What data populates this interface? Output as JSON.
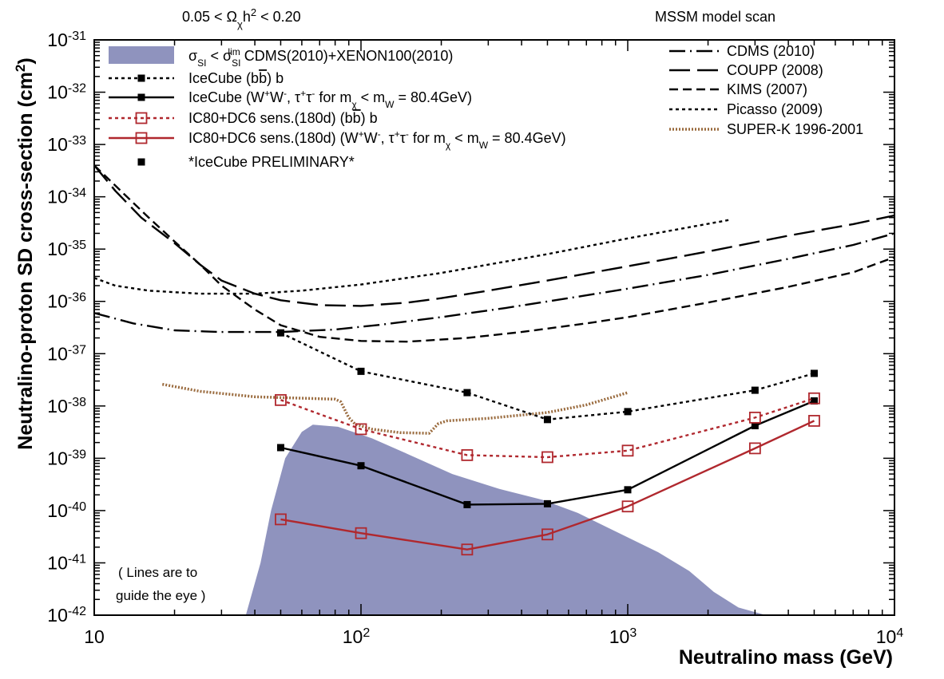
{
  "chart_data": {
    "type": "line",
    "title_left": "0.05 < Ω_χ h² < 0.20",
    "title_left_parts": [
      "0.05 < Ω",
      "χ",
      "h",
      "2",
      " < 0.20"
    ],
    "title_right": "MSSM model scan",
    "xlabel": "Neutralino mass (GeV)",
    "ylabel": "Neutralino-proton SD cross-section (cm²)",
    "ylabel_parts": [
      "Neutralino-proton SD cross-section (cm",
      "2",
      ")"
    ],
    "x_scale": "log",
    "y_scale": "log",
    "xlim": [
      10,
      10000
    ],
    "ylim": [
      1e-42,
      1e-31
    ],
    "x_ticks": [
      {
        "value": 10,
        "base": "10",
        "exp": ""
      },
      {
        "value": 100,
        "base": "10",
        "exp": "2"
      },
      {
        "value": 1000,
        "base": "10",
        "exp": "3"
      },
      {
        "value": 10000,
        "base": "10",
        "exp": "4"
      }
    ],
    "y_ticks": [
      {
        "value": 1e-31,
        "base": "10",
        "exp": "-31"
      },
      {
        "value": 1e-32,
        "base": "10",
        "exp": "-32"
      },
      {
        "value": 1e-33,
        "base": "10",
        "exp": "-33"
      },
      {
        "value": 1e-34,
        "base": "10",
        "exp": "-34"
      },
      {
        "value": 1e-35,
        "base": "10",
        "exp": "-35"
      },
      {
        "value": 1e-36,
        "base": "10",
        "exp": "-36"
      },
      {
        "value": 1e-37,
        "base": "10",
        "exp": "-37"
      },
      {
        "value": 1e-38,
        "base": "10",
        "exp": "-38"
      },
      {
        "value": 1e-39,
        "base": "10",
        "exp": "-39"
      },
      {
        "value": 1e-40,
        "base": "10",
        "exp": "-40"
      },
      {
        "value": 1e-41,
        "base": "10",
        "exp": "-41"
      },
      {
        "value": 1e-42,
        "base": "10",
        "exp": "-42"
      }
    ],
    "band": {
      "name": "σSI < σSI lim CDMS(2010)+XENON100(2010)",
      "color": "#8f93be",
      "upper": [
        [
          37,
          1e-42
        ],
        [
          42,
          1e-41
        ],
        [
          46,
          1e-40
        ],
        [
          52,
          1e-39
        ],
        [
          60,
          3.2e-39
        ],
        [
          66,
          4.4e-39
        ],
        [
          82,
          4e-39
        ],
        [
          110,
          2.4e-39
        ],
        [
          150,
          1.2e-39
        ],
        [
          220,
          5e-40
        ],
        [
          330,
          2.6e-40
        ],
        [
          480,
          1.6e-40
        ],
        [
          650,
          9e-41
        ],
        [
          900,
          4e-41
        ],
        [
          1300,
          1.6e-41
        ],
        [
          1700,
          7e-42
        ],
        [
          2100,
          2.8e-42
        ],
        [
          2600,
          1.4e-42
        ],
        [
          3300,
          1e-42
        ]
      ],
      "lower": 1e-42
    },
    "series": [
      {
        "name": "CDMS (2010)",
        "color": "#000000",
        "style": "dashdot",
        "points": [
          [
            10,
            6e-37
          ],
          [
            14,
            3.8e-37
          ],
          [
            20,
            2.8e-37
          ],
          [
            30,
            2.6e-37
          ],
          [
            50,
            2.6e-37
          ],
          [
            80,
            2.9e-37
          ],
          [
            120,
            3.6e-37
          ],
          [
            200,
            5e-37
          ],
          [
            350,
            7.5e-37
          ],
          [
            600,
            1.15e-36
          ],
          [
            1000,
            1.75e-36
          ],
          [
            2000,
            3.2e-36
          ],
          [
            4000,
            6.5e-36
          ],
          [
            7000,
            1.2e-35
          ],
          [
            10000,
            2e-35
          ]
        ]
      },
      {
        "name": "COUPP (2008)",
        "color": "#000000",
        "style": "longdash",
        "points": [
          [
            10,
            4e-34
          ],
          [
            12,
            1.3e-34
          ],
          [
            15,
            4e-35
          ],
          [
            20,
            1.3e-35
          ],
          [
            25,
            5e-36
          ],
          [
            30,
            2.5e-36
          ],
          [
            40,
            1.4e-36
          ],
          [
            50,
            1.05e-36
          ],
          [
            70,
            8.5e-37
          ],
          [
            100,
            8.2e-37
          ],
          [
            150,
            9.5e-37
          ],
          [
            200,
            1.15e-36
          ],
          [
            300,
            1.6e-36
          ],
          [
            500,
            2.5e-36
          ],
          [
            1000,
            4.7e-36
          ],
          [
            2000,
            9e-36
          ],
          [
            4000,
            1.8e-35
          ],
          [
            7000,
            3e-35
          ],
          [
            10000,
            4.4e-35
          ]
        ]
      },
      {
        "name": "KIMS (2007)",
        "color": "#000000",
        "style": "dash",
        "points": [
          [
            10,
            4e-34
          ],
          [
            13,
            1.1e-34
          ],
          [
            16,
            4e-35
          ],
          [
            20,
            1.4e-35
          ],
          [
            25,
            5e-36
          ],
          [
            30,
            2e-36
          ],
          [
            40,
            7e-37
          ],
          [
            50,
            3.5e-37
          ],
          [
            70,
            2.1e-37
          ],
          [
            100,
            1.75e-37
          ],
          [
            150,
            1.7e-37
          ],
          [
            250,
            2e-37
          ],
          [
            400,
            2.6e-37
          ],
          [
            700,
            3.8e-37
          ],
          [
            1000,
            5e-37
          ],
          [
            2000,
            9.5e-37
          ],
          [
            4000,
            1.9e-36
          ],
          [
            7000,
            3.6e-36
          ],
          [
            10000,
            7e-36
          ]
        ]
      },
      {
        "name": "Picasso (2009)",
        "color": "#000000",
        "style": "dot",
        "points": [
          [
            10,
            2.8e-36
          ],
          [
            12,
            2e-36
          ],
          [
            16,
            1.6e-36
          ],
          [
            25,
            1.4e-36
          ],
          [
            40,
            1.4e-36
          ],
          [
            60,
            1.6e-36
          ],
          [
            100,
            2.1e-36
          ],
          [
            200,
            3.5e-36
          ],
          [
            500,
            8e-36
          ],
          [
            1000,
            1.6e-35
          ],
          [
            2400,
            3.6e-35
          ]
        ]
      },
      {
        "name": "SUPER-K 1996-2001",
        "color": "#9a6b3e",
        "style": "superk",
        "points": [
          [
            18,
            2.6e-38
          ],
          [
            25,
            1.9e-38
          ],
          [
            40,
            1.5e-38
          ],
          [
            80,
            1.35e-38
          ],
          [
            84,
            1.2e-38
          ],
          [
            90,
            6e-39
          ],
          [
            95,
            4.5e-39
          ],
          [
            110,
            3.6e-39
          ],
          [
            140,
            3.1e-39
          ],
          [
            180,
            3e-39
          ],
          [
            195,
            4.6e-39
          ],
          [
            210,
            5.2e-39
          ],
          [
            300,
            5.8e-39
          ],
          [
            500,
            7.5e-39
          ],
          [
            700,
            1.05e-38
          ],
          [
            1000,
            1.8e-38
          ]
        ]
      },
      {
        "name": "IceCube (b b̄)",
        "color": "#000000",
        "style": "dot",
        "marker": "filled-square",
        "points": [
          [
            50,
            2.5e-37
          ],
          [
            100,
            4.6e-38
          ],
          [
            250,
            1.8e-38
          ],
          [
            500,
            5.5e-39
          ],
          [
            1000,
            7.8e-39
          ],
          [
            3000,
            2e-38
          ],
          [
            5000,
            4.2e-38
          ]
        ]
      },
      {
        "name": "IceCube (W⁺W⁻, τ⁺τ⁻ for mχ < mW = 80.4GeV)",
        "color": "#000000",
        "style": "solid",
        "marker": "filled-square",
        "points": [
          [
            50,
            1.6e-39
          ],
          [
            100,
            7.2e-40
          ],
          [
            250,
            1.3e-40
          ],
          [
            500,
            1.35e-40
          ],
          [
            1000,
            2.5e-40
          ],
          [
            3000,
            4.2e-39
          ],
          [
            5000,
            1.25e-38
          ]
        ]
      },
      {
        "name": "IC80+DC6 sens.(180d) (b b̄)",
        "color": "#b0282e",
        "style": "dot",
        "marker": "open-square",
        "points": [
          [
            50,
            1.3e-38
          ],
          [
            100,
            3.6e-39
          ],
          [
            250,
            1.15e-39
          ],
          [
            500,
            1.05e-39
          ],
          [
            1000,
            1.4e-39
          ],
          [
            3000,
            6e-39
          ],
          [
            5000,
            1.4e-38
          ]
        ]
      },
      {
        "name": "IC80+DC6 sens.(180d) (W⁺W⁻, τ⁺τ⁻ for mχ < mW = 80.4GeV)",
        "color": "#b0282e",
        "style": "solid",
        "marker": "open-square",
        "points": [
          [
            50,
            6.8e-41
          ],
          [
            100,
            3.7e-41
          ],
          [
            250,
            1.8e-41
          ],
          [
            500,
            3.5e-41
          ],
          [
            1000,
            1.2e-40
          ],
          [
            3000,
            1.55e-39
          ],
          [
            5000,
            5.2e-39
          ]
        ]
      }
    ],
    "legend_left": [
      {
        "kind": "band",
        "color": "#8f93be",
        "parts": [
          "σ",
          "SI",
          " < σ",
          "SI",
          "lim",
          " CDMS(2010)+XENON100(2010)"
        ]
      },
      {
        "kind": "line",
        "series": 5,
        "text": "IceCube (b",
        "bar": "b",
        "close": ")",
        "suffix": "b"
      },
      {
        "kind": "line",
        "series": 6,
        "parts": [
          "IceCube (W",
          "+",
          "W",
          "-",
          ", τ",
          "+",
          "τ",
          "-",
          " for m",
          "χ",
          " < m",
          "W",
          " = 80.4GeV)"
        ]
      },
      {
        "kind": "line",
        "series": 7,
        "text": "IC80+DC6 sens.(180d) (b",
        "bar": "b",
        "close": ")",
        "suffix": "b"
      },
      {
        "kind": "line",
        "series": 8,
        "parts": [
          "IC80+DC6 sens.(180d) (W",
          "+",
          "W",
          "-",
          ", τ",
          "+",
          "τ",
          "-",
          " for m",
          "χ",
          " < m",
          "W",
          " = 80.4GeV)"
        ]
      },
      {
        "kind": "marker",
        "text": "*IceCube PRELIMINARY*"
      }
    ],
    "legend_right": [
      {
        "series": 0,
        "text": "CDMS (2010)"
      },
      {
        "series": 1,
        "text": "COUPP (2008)"
      },
      {
        "series": 2,
        "text": "KIMS (2007)"
      },
      {
        "series": 3,
        "text": "Picasso (2009)"
      },
      {
        "series": 4,
        "text": "SUPER-K 1996-2001"
      }
    ],
    "annotation": [
      "( Lines are to",
      "guide the eye )"
    ]
  }
}
